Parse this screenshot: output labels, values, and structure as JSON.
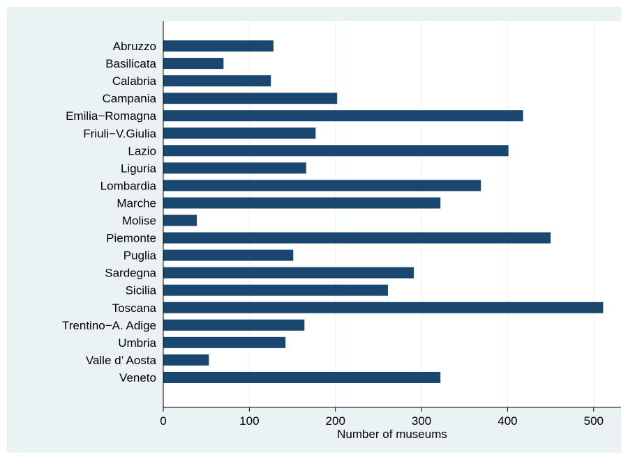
{
  "chart_data": {
    "type": "bar",
    "orientation": "horizontal",
    "title": "",
    "xlabel": "Number of museums",
    "ylabel": "",
    "xlim": [
      0,
      530
    ],
    "xticks": [
      0,
      100,
      200,
      300,
      400,
      500
    ],
    "grid": true,
    "categories": [
      "Abruzzo",
      "Basilicata",
      "Calabria",
      "Campania",
      "Emilia−Romagna",
      "Friuli−V.Giulia",
      "Lazio",
      "Liguria",
      "Lombardia",
      "Marche",
      "Molise",
      "Piemonte",
      "Puglia",
      "Sardegna",
      "Sicilia",
      "Toscana",
      "Trentino−A. Adige",
      "Umbria",
      "Valle d’ Aosta",
      "Veneto"
    ],
    "values": [
      128,
      70,
      125,
      202,
      418,
      177,
      401,
      166,
      369,
      322,
      39,
      450,
      151,
      291,
      261,
      511,
      164,
      142,
      53,
      322
    ],
    "colors": {
      "bar": "#1a476f",
      "background": "#eaf2f3",
      "plot_background": "#ffffff",
      "grid": "#eaf2f3",
      "axis": "#000000"
    }
  }
}
